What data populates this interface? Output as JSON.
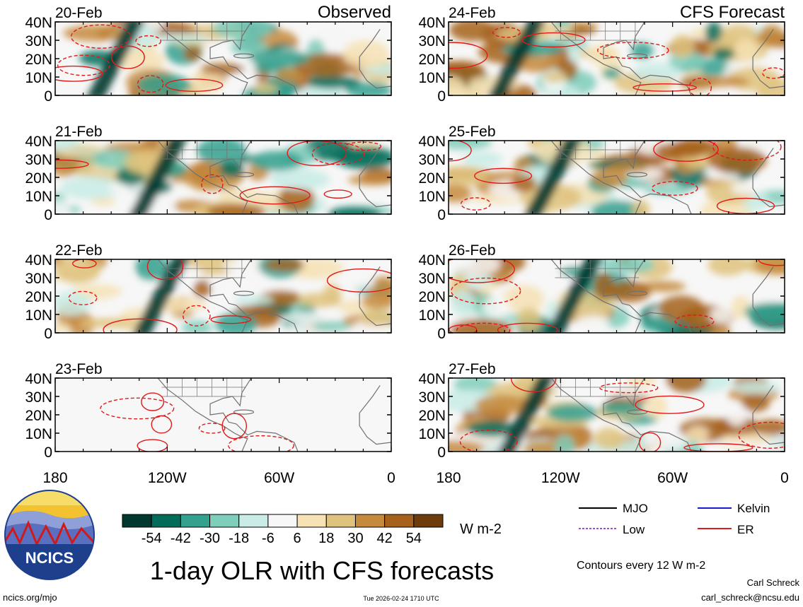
{
  "chart_data": {
    "type": "heatmap",
    "title": "1-day OLR with CFS forecasts",
    "variable": "OLR anomaly",
    "units": "W m-2",
    "contour_note": "Contours every 12 W m-2",
    "contour_types": [
      {
        "name": "MJO",
        "color": "#000000"
      },
      {
        "name": "Kelvin",
        "color": "#1a1acc"
      },
      {
        "name": "Low",
        "color": "#9a4fd0"
      },
      {
        "name": "ER",
        "color": "#e01a1a"
      }
    ],
    "x_ticks": [
      "180",
      "120W",
      "60W",
      "0"
    ],
    "x_tick_values": [
      -180,
      -120,
      -60,
      0
    ],
    "y_ticks": [
      "40N",
      "30N",
      "20N",
      "10N",
      "0"
    ],
    "y_tick_values": [
      40,
      30,
      20,
      10,
      0
    ],
    "xlim": [
      -180,
      0
    ],
    "ylim": [
      0,
      40
    ],
    "colorbar": {
      "labels": [
        "-54",
        "-42",
        "-30",
        "-18",
        "-6",
        "6",
        "18",
        "30",
        "42",
        "54"
      ],
      "colors": [
        "#00372e",
        "#016c59",
        "#34a08e",
        "#7fcdbb",
        "#c9ece6",
        "#f7f7f7",
        "#f6e2b5",
        "#dfc27d",
        "#c58a3d",
        "#a6611a",
        "#6e3c0c"
      ]
    },
    "left_column_label": "Observed",
    "right_column_label": "CFS Forecast",
    "panels": [
      {
        "date": "20-Feb",
        "source": "observed"
      },
      {
        "date": "21-Feb",
        "source": "observed"
      },
      {
        "date": "22-Feb",
        "source": "observed"
      },
      {
        "date": "23-Feb",
        "source": "observed"
      },
      {
        "date": "24-Feb",
        "source": "forecast"
      },
      {
        "date": "25-Feb",
        "source": "forecast"
      },
      {
        "date": "26-Feb",
        "source": "forecast"
      },
      {
        "date": "27-Feb",
        "source": "forecast"
      }
    ]
  },
  "logo": {
    "text": "NCICS"
  },
  "footer": {
    "website": "ncics.org/mjo",
    "timestamp": "Tue 2026-02-24 1710 UTC",
    "author": "Carl Schreck",
    "email": "carl_schreck@ncsu.edu"
  }
}
